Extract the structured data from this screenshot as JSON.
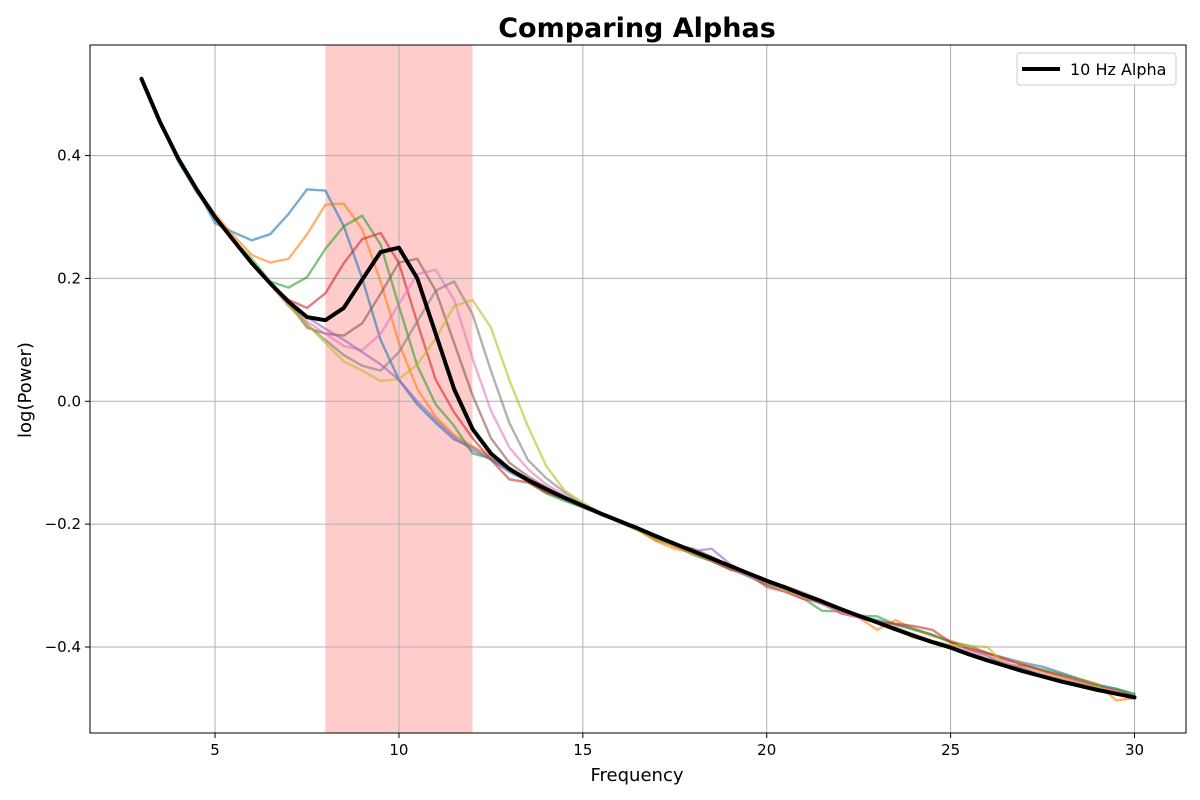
{
  "chart_data": {
    "type": "line",
    "title": "Comparing Alphas",
    "xlabel": "Frequency",
    "ylabel": "log(Power)",
    "xlim": [
      1.6,
      31.4
    ],
    "ylim": [
      -0.54,
      0.58
    ],
    "xticks": [
      5,
      10,
      15,
      20,
      25,
      30
    ],
    "yticks": [
      -0.4,
      -0.2,
      0.0,
      0.2,
      0.4
    ],
    "xtick_labels": [
      "5",
      "10",
      "15",
      "20",
      "25",
      "30"
    ],
    "ytick_labels": [
      "−0.4",
      "−0.2",
      "0.0",
      "0.2",
      "0.4"
    ],
    "grid": true,
    "legend_position": "top-right",
    "shaded_band": {
      "x0": 8,
      "x1": 12,
      "color": "#ffcccc"
    },
    "x": [
      3,
      3.5,
      4,
      4.5,
      5,
      5.5,
      6,
      6.5,
      7,
      7.5,
      8,
      8.5,
      9,
      9.5,
      10,
      10.5,
      11,
      11.5,
      12,
      12.5,
      13,
      13.5,
      14,
      14.5,
      15,
      15.5,
      16,
      16.5,
      17,
      17.5,
      18,
      18.5,
      19,
      19.5,
      20,
      20.5,
      21,
      21.5,
      22,
      22.5,
      23,
      23.5,
      24,
      24.5,
      25,
      25.5,
      26,
      26.5,
      27,
      27.5,
      28,
      28.5,
      29,
      29.5,
      30
    ],
    "series": [
      {
        "name": "",
        "peak": 7.5,
        "color": "#1f77b4",
        "opacity": 0.6,
        "width": 2.4,
        "values": [
          0.525,
          0.455,
          0.395,
          0.345,
          0.29,
          0.275,
          0.262,
          0.272,
          0.305,
          0.345,
          0.343,
          0.285,
          0.2,
          0.1,
          0.035,
          -0.005,
          -0.035,
          -0.062,
          -0.075,
          -0.095,
          -0.115,
          -0.13,
          -0.148,
          -0.16,
          -0.172,
          -0.185,
          -0.196,
          -0.206,
          -0.218,
          -0.232,
          -0.245,
          -0.258,
          -0.272,
          -0.283,
          -0.297,
          -0.308,
          -0.318,
          -0.33,
          -0.339,
          -0.35,
          -0.356,
          -0.363,
          -0.372,
          -0.38,
          -0.392,
          -0.398,
          -0.41,
          -0.418,
          -0.426,
          -0.432,
          -0.442,
          -0.452,
          -0.462,
          -0.468,
          -0.478
        ]
      },
      {
        "name": "",
        "peak": 8.5,
        "color": "#ff7f0e",
        "opacity": 0.6,
        "width": 2.4,
        "values": [
          0.525,
          0.455,
          0.395,
          0.345,
          0.305,
          0.27,
          0.238,
          0.226,
          0.232,
          0.272,
          0.32,
          0.322,
          0.28,
          0.195,
          0.095,
          0.02,
          -0.025,
          -0.055,
          -0.073,
          -0.09,
          -0.11,
          -0.128,
          -0.145,
          -0.158,
          -0.17,
          -0.185,
          -0.197,
          -0.21,
          -0.228,
          -0.24,
          -0.247,
          -0.258,
          -0.27,
          -0.284,
          -0.296,
          -0.308,
          -0.316,
          -0.327,
          -0.338,
          -0.352,
          -0.372,
          -0.356,
          -0.371,
          -0.382,
          -0.39,
          -0.4,
          -0.41,
          -0.421,
          -0.428,
          -0.438,
          -0.446,
          -0.452,
          -0.46,
          -0.487,
          -0.483
        ]
      },
      {
        "name": "",
        "peak": 9.0,
        "color": "#2ca02c",
        "opacity": 0.6,
        "width": 2.4,
        "values": [
          0.525,
          0.455,
          0.39,
          0.34,
          0.3,
          0.262,
          0.232,
          0.195,
          0.185,
          0.202,
          0.248,
          0.285,
          0.302,
          0.255,
          0.155,
          0.058,
          -0.005,
          -0.04,
          -0.085,
          -0.093,
          -0.111,
          -0.13,
          -0.15,
          -0.162,
          -0.173,
          -0.184,
          -0.197,
          -0.21,
          -0.222,
          -0.234,
          -0.25,
          -0.26,
          -0.272,
          -0.285,
          -0.298,
          -0.309,
          -0.321,
          -0.341,
          -0.342,
          -0.349,
          -0.35,
          -0.363,
          -0.37,
          -0.38,
          -0.392,
          -0.404,
          -0.414,
          -0.431,
          -0.43,
          -0.437,
          -0.444,
          -0.453,
          -0.462,
          -0.468,
          -0.476
        ]
      },
      {
        "name": "",
        "peak": 9.5,
        "color": "#d62728",
        "opacity": 0.6,
        "width": 2.4,
        "values": [
          0.525,
          0.455,
          0.395,
          0.345,
          0.3,
          0.262,
          0.225,
          0.192,
          0.165,
          0.152,
          0.176,
          0.225,
          0.264,
          0.274,
          0.225,
          0.128,
          0.035,
          -0.018,
          -0.06,
          -0.095,
          -0.127,
          -0.132,
          -0.148,
          -0.158,
          -0.172,
          -0.185,
          -0.196,
          -0.208,
          -0.222,
          -0.236,
          -0.247,
          -0.26,
          -0.274,
          -0.282,
          -0.302,
          -0.31,
          -0.322,
          -0.327,
          -0.345,
          -0.352,
          -0.36,
          -0.362,
          -0.366,
          -0.372,
          -0.392,
          -0.403,
          -0.41,
          -0.42,
          -0.43,
          -0.439,
          -0.447,
          -0.456,
          -0.465,
          -0.471,
          -0.48
        ]
      },
      {
        "name": "10 Hz Alpha",
        "peak": 10.0,
        "color": "#000000",
        "opacity": 1,
        "width": 4,
        "values": [
          0.525,
          0.455,
          0.395,
          0.345,
          0.3,
          0.262,
          0.225,
          0.192,
          0.162,
          0.137,
          0.132,
          0.152,
          0.198,
          0.243,
          0.25,
          0.2,
          0.11,
          0.02,
          -0.045,
          -0.085,
          -0.11,
          -0.128,
          -0.143,
          -0.157,
          -0.17,
          -0.183,
          -0.195,
          -0.207,
          -0.22,
          -0.232,
          -0.244,
          -0.256,
          -0.268,
          -0.28,
          -0.292,
          -0.303,
          -0.315,
          -0.326,
          -0.338,
          -0.349,
          -0.36,
          -0.371,
          -0.382,
          -0.392,
          -0.401,
          -0.412,
          -0.422,
          -0.431,
          -0.44,
          -0.448,
          -0.456,
          -0.463,
          -0.47,
          -0.476,
          -0.482
        ]
      },
      {
        "name": "",
        "peak": 10.5,
        "color": "#8c564b",
        "opacity": 0.6,
        "width": 2.4,
        "values": [
          0.525,
          0.455,
          0.395,
          0.345,
          0.3,
          0.262,
          0.225,
          0.192,
          0.16,
          0.12,
          0.11,
          0.107,
          0.127,
          0.175,
          0.226,
          0.232,
          0.18,
          0.095,
          0.01,
          -0.06,
          -0.1,
          -0.122,
          -0.14,
          -0.157,
          -0.17,
          -0.182,
          -0.194,
          -0.207,
          -0.226,
          -0.234,
          -0.24,
          -0.253,
          -0.268,
          -0.281,
          -0.293,
          -0.301,
          -0.312,
          -0.324,
          -0.34,
          -0.348,
          -0.36,
          -0.368,
          -0.38,
          -0.39,
          -0.399,
          -0.41,
          -0.419,
          -0.427,
          -0.438,
          -0.446,
          -0.453,
          -0.46,
          -0.468,
          -0.475,
          -0.481
        ]
      },
      {
        "name": "",
        "peak": 11.0,
        "color": "#e377c2",
        "opacity": 0.6,
        "width": 2.4,
        "values": [
          0.525,
          0.455,
          0.395,
          0.345,
          0.3,
          0.262,
          0.225,
          0.19,
          0.155,
          0.13,
          0.11,
          0.09,
          0.083,
          0.11,
          0.158,
          0.207,
          0.214,
          0.165,
          0.07,
          -0.015,
          -0.075,
          -0.11,
          -0.135,
          -0.153,
          -0.17,
          -0.182,
          -0.197,
          -0.208,
          -0.222,
          -0.234,
          -0.245,
          -0.258,
          -0.27,
          -0.285,
          -0.295,
          -0.31,
          -0.32,
          -0.33,
          -0.344,
          -0.352,
          -0.36,
          -0.37,
          -0.379,
          -0.39,
          -0.398,
          -0.406,
          -0.414,
          -0.425,
          -0.435,
          -0.443,
          -0.45,
          -0.458,
          -0.466,
          -0.474,
          -0.48
        ]
      },
      {
        "name": "",
        "peak": 11.5,
        "color": "#7f7f7f",
        "opacity": 0.6,
        "width": 2.4,
        "values": [
          0.525,
          0.455,
          0.395,
          0.345,
          0.3,
          0.262,
          0.225,
          0.192,
          0.16,
          0.125,
          0.1,
          0.075,
          0.058,
          0.05,
          0.08,
          0.13,
          0.18,
          0.195,
          0.142,
          0.05,
          -0.035,
          -0.095,
          -0.125,
          -0.148,
          -0.168,
          -0.182,
          -0.195,
          -0.207,
          -0.22,
          -0.232,
          -0.244,
          -0.256,
          -0.268,
          -0.28,
          -0.292,
          -0.303,
          -0.315,
          -0.326,
          -0.338,
          -0.349,
          -0.36,
          -0.371,
          -0.382,
          -0.392,
          -0.401,
          -0.412,
          -0.422,
          -0.431,
          -0.44,
          -0.448,
          -0.456,
          -0.463,
          -0.47,
          -0.476,
          -0.482
        ]
      },
      {
        "name": "",
        "peak": 12.0,
        "color": "#bcbd22",
        "opacity": 0.6,
        "width": 2.4,
        "values": [
          0.525,
          0.455,
          0.395,
          0.345,
          0.3,
          0.262,
          0.225,
          0.192,
          0.155,
          0.125,
          0.095,
          0.065,
          0.05,
          0.033,
          0.036,
          0.06,
          0.102,
          0.155,
          0.165,
          0.12,
          0.035,
          -0.04,
          -0.105,
          -0.145,
          -0.165,
          -0.182,
          -0.196,
          -0.21,
          -0.225,
          -0.235,
          -0.247,
          -0.258,
          -0.27,
          -0.28,
          -0.295,
          -0.308,
          -0.318,
          -0.327,
          -0.34,
          -0.348,
          -0.359,
          -0.37,
          -0.385,
          -0.39,
          -0.397,
          -0.398,
          -0.4,
          -0.43,
          -0.435,
          -0.445,
          -0.452,
          -0.46,
          -0.465,
          -0.476,
          -0.484
        ]
      },
      {
        "name": "",
        "peak": 18.0,
        "color": "#9467bd",
        "opacity": 0.6,
        "width": 2.4,
        "values": [
          0.525,
          0.455,
          0.395,
          0.345,
          0.3,
          0.262,
          0.225,
          0.192,
          0.162,
          0.137,
          0.118,
          0.1,
          0.08,
          0.06,
          0.035,
          0.0,
          -0.03,
          -0.058,
          -0.08,
          -0.095,
          -0.112,
          -0.128,
          -0.143,
          -0.157,
          -0.17,
          -0.183,
          -0.195,
          -0.207,
          -0.22,
          -0.232,
          -0.244,
          -0.24,
          -0.265,
          -0.28,
          -0.295,
          -0.305,
          -0.315,
          -0.326,
          -0.338,
          -0.349,
          -0.36,
          -0.371,
          -0.382,
          -0.392,
          -0.401,
          -0.41,
          -0.42,
          -0.431,
          -0.435,
          -0.448,
          -0.456,
          -0.463,
          -0.47,
          -0.476,
          -0.482
        ]
      }
    ]
  }
}
